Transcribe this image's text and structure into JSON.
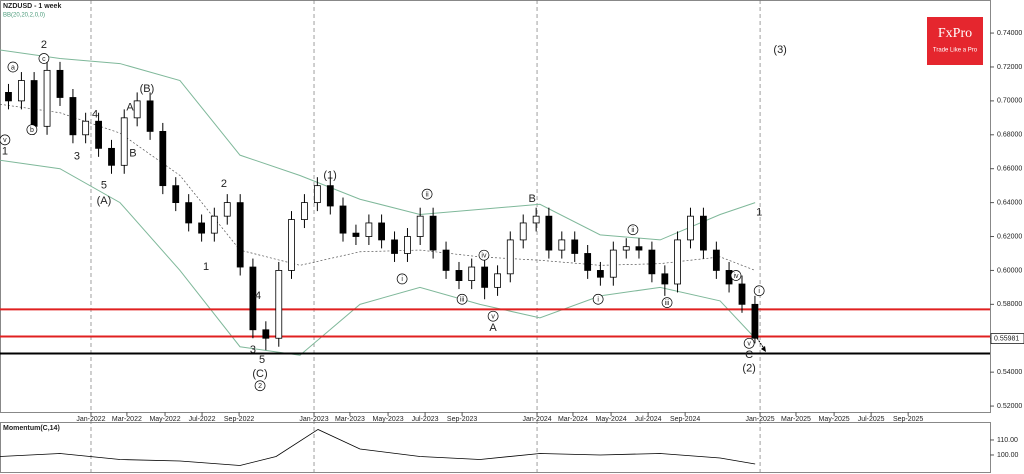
{
  "logo": {
    "title": "FxPro",
    "subtitle": "Trade Like a Pro"
  },
  "chart_data": [
    {
      "type": "candlestick",
      "title": "NZDUSD - 1 week",
      "subtitle": "BB(20,20,2,0,0)",
      "x": [
        2021.63,
        2021.688,
        2021.745,
        2021.803,
        2021.861,
        2021.919,
        2021.976,
        2022.034,
        2022.092,
        2022.149,
        2022.207,
        2022.265,
        2022.322,
        2022.38,
        2022.438,
        2022.496,
        2022.553,
        2022.611,
        2022.669,
        2022.726,
        2022.784,
        2022.842,
        2022.899,
        2022.957,
        2023.015,
        2023.073,
        2023.13,
        2023.188,
        2023.246,
        2023.303,
        2023.361,
        2023.419,
        2023.476,
        2023.534,
        2023.592,
        2023.65,
        2023.707,
        2023.765,
        2023.823,
        2023.88,
        2023.938,
        2023.996,
        2024.053,
        2024.111,
        2024.169,
        2024.227,
        2024.284,
        2024.342,
        2024.4,
        2024.457,
        2024.515,
        2024.573,
        2024.63,
        2024.688,
        2024.746,
        2024.804,
        2024.861,
        2024.919,
        2024.977
      ],
      "open": [
        0.705,
        0.7,
        0.712,
        0.685,
        0.718,
        0.702,
        0.68,
        0.688,
        0.672,
        0.662,
        0.69,
        0.7,
        0.682,
        0.65,
        0.64,
        0.628,
        0.622,
        0.632,
        0.64,
        0.602,
        0.565,
        0.56,
        0.6,
        0.63,
        0.64,
        0.65,
        0.638,
        0.622,
        0.62,
        0.628,
        0.618,
        0.61,
        0.62,
        0.632,
        0.612,
        0.6,
        0.594,
        0.602,
        0.59,
        0.598,
        0.618,
        0.628,
        0.632,
        0.612,
        0.618,
        0.61,
        0.6,
        0.596,
        0.612,
        0.614,
        0.612,
        0.598,
        0.592,
        0.618,
        0.632,
        0.612,
        0.6,
        0.592,
        0.58
      ],
      "high": [
        0.71,
        0.717,
        0.717,
        0.723,
        0.723,
        0.707,
        0.693,
        0.693,
        0.677,
        0.695,
        0.705,
        0.705,
        0.687,
        0.655,
        0.645,
        0.633,
        0.637,
        0.645,
        0.645,
        0.607,
        0.57,
        0.605,
        0.635,
        0.645,
        0.655,
        0.655,
        0.643,
        0.627,
        0.633,
        0.633,
        0.623,
        0.625,
        0.637,
        0.637,
        0.617,
        0.605,
        0.607,
        0.607,
        0.603,
        0.623,
        0.633,
        0.637,
        0.637,
        0.623,
        0.623,
        0.615,
        0.605,
        0.617,
        0.619,
        0.619,
        0.617,
        0.603,
        0.623,
        0.637,
        0.637,
        0.617,
        0.605,
        0.597,
        0.585
      ],
      "low": [
        0.695,
        0.695,
        0.68,
        0.68,
        0.697,
        0.675,
        0.675,
        0.667,
        0.657,
        0.657,
        0.685,
        0.677,
        0.645,
        0.635,
        0.623,
        0.617,
        0.617,
        0.627,
        0.597,
        0.56,
        0.553,
        0.555,
        0.595,
        0.625,
        0.635,
        0.633,
        0.617,
        0.615,
        0.615,
        0.613,
        0.605,
        0.605,
        0.615,
        0.607,
        0.595,
        0.589,
        0.589,
        0.583,
        0.585,
        0.593,
        0.613,
        0.623,
        0.607,
        0.607,
        0.605,
        0.595,
        0.591,
        0.591,
        0.607,
        0.607,
        0.593,
        0.585,
        0.587,
        0.613,
        0.607,
        0.595,
        0.587,
        0.575,
        0.557
      ],
      "close": [
        0.7,
        0.712,
        0.685,
        0.718,
        0.702,
        0.68,
        0.688,
        0.672,
        0.662,
        0.69,
        0.7,
        0.682,
        0.65,
        0.64,
        0.628,
        0.622,
        0.632,
        0.64,
        0.602,
        0.565,
        0.56,
        0.6,
        0.63,
        0.64,
        0.65,
        0.638,
        0.622,
        0.62,
        0.628,
        0.618,
        0.61,
        0.62,
        0.632,
        0.612,
        0.6,
        0.594,
        0.602,
        0.59,
        0.598,
        0.618,
        0.628,
        0.632,
        0.612,
        0.618,
        0.61,
        0.6,
        0.596,
        0.612,
        0.614,
        0.612,
        0.598,
        0.592,
        0.618,
        0.632,
        0.612,
        0.6,
        0.592,
        0.58,
        0.56
      ],
      "up_color": "#ffffff",
      "down_color": "#000000",
      "xlim": [
        2021.592,
        2026.031
      ],
      "ylim": [
        0.5165,
        0.7595
      ],
      "xticks": [
        {
          "value": 2022.0,
          "label": "Jan-2022"
        },
        {
          "value": 2022.161,
          "label": "Mar-2022"
        },
        {
          "value": 2022.332,
          "label": "May-2022"
        },
        {
          "value": 2022.498,
          "label": "Jul-2022"
        },
        {
          "value": 2022.664,
          "label": "Sep-2022"
        },
        {
          "value": 2023.0,
          "label": "Jan-2023"
        },
        {
          "value": 2023.161,
          "label": "Mar-2023"
        },
        {
          "value": 2023.332,
          "label": "May-2023"
        },
        {
          "value": 2023.498,
          "label": "Jul-2023"
        },
        {
          "value": 2023.664,
          "label": "Sep-2023"
        },
        {
          "value": 2024.0,
          "label": "Jan-2024"
        },
        {
          "value": 2024.161,
          "label": "Mar-2024"
        },
        {
          "value": 2024.332,
          "label": "May-2024"
        },
        {
          "value": 2024.498,
          "label": "Jul-2024"
        },
        {
          "value": 2024.664,
          "label": "Sep-2024"
        },
        {
          "value": 2025.0,
          "label": "Jan-2025"
        },
        {
          "value": 2025.161,
          "label": "Mar-2025"
        },
        {
          "value": 2025.332,
          "label": "May-2025"
        },
        {
          "value": 2025.498,
          "label": "Jul-2025"
        },
        {
          "value": 2025.664,
          "label": "Sep-2025"
        }
      ],
      "xgrid": [
        2022,
        2023,
        2024,
        2025
      ],
      "yticks": [
        {
          "value": 0.74,
          "label": "0.74000"
        },
        {
          "value": 0.72,
          "label": "0.72000"
        },
        {
          "value": 0.7,
          "label": "0.70000"
        },
        {
          "value": 0.68,
          "label": "0.68000"
        },
        {
          "value": 0.66,
          "label": "0.66000"
        },
        {
          "value": 0.64,
          "label": "0.64000"
        },
        {
          "value": 0.62,
          "label": "0.62000"
        },
        {
          "value": 0.6,
          "label": "0.60000"
        },
        {
          "value": 0.58,
          "label": "0.58000"
        },
        {
          "value": 0.56,
          "label": "0.56000"
        },
        {
          "value": 0.54,
          "label": "0.54000"
        },
        {
          "value": 0.52,
          "label": "0.52000"
        }
      ],
      "bands": {
        "color": "#7fb89a",
        "x": [
          2021.592,
          2021.861,
          2022.13,
          2022.399,
          2022.668,
          2022.937,
          2023.206,
          2023.475,
          2023.744,
          2024.013,
          2024.283,
          2024.552,
          2024.821,
          2024.978
        ],
        "upper": [
          0.73,
          0.725,
          0.722,
          0.712,
          0.668,
          0.656,
          0.642,
          0.633,
          0.636,
          0.639,
          0.621,
          0.618,
          0.633,
          0.64
        ],
        "middle": [
          0.698,
          0.693,
          0.681,
          0.656,
          0.612,
          0.603,
          0.611,
          0.612,
          0.608,
          0.606,
          0.603,
          0.604,
          0.608,
          0.6
        ],
        "lower": [
          0.665,
          0.66,
          0.64,
          0.6,
          0.555,
          0.55,
          0.58,
          0.59,
          0.58,
          0.572,
          0.585,
          0.59,
          0.582,
          0.56
        ]
      },
      "hlines": [
        {
          "value": 0.577,
          "color": "#e02020"
        },
        {
          "value": 0.561,
          "color": "#e02020"
        },
        {
          "value": 0.551,
          "color": "#000000"
        }
      ],
      "last_price": {
        "value": 0.55981,
        "label": "0.55981"
      },
      "annotations": [
        {
          "text": "a",
          "x": 2021.65,
          "y": 0.72,
          "circled": true
        },
        {
          "text": "b",
          "x": 2021.735,
          "y": 0.683,
          "circled": true
        },
        {
          "text": "2",
          "x": 2021.789,
          "y": 0.733,
          "circled": false
        },
        {
          "text": "c",
          "x": 2021.789,
          "y": 0.725,
          "circled": true
        },
        {
          "text": "v",
          "x": 2021.614,
          "y": 0.677,
          "circled": true
        },
        {
          "text": "1",
          "x": 2021.614,
          "y": 0.67,
          "circled": false
        },
        {
          "text": "3",
          "x": 2021.937,
          "y": 0.667,
          "circled": false
        },
        {
          "text": "4",
          "x": 2022.018,
          "y": 0.692,
          "circled": false
        },
        {
          "text": "5",
          "x": 2022.058,
          "y": 0.65,
          "circled": false
        },
        {
          "text": "(A)",
          "x": 2022.058,
          "y": 0.641,
          "circled": false
        },
        {
          "text": "A",
          "x": 2022.175,
          "y": 0.696,
          "circled": false
        },
        {
          "text": "(B)",
          "x": 2022.251,
          "y": 0.707,
          "circled": false
        },
        {
          "text": "B",
          "x": 2022.188,
          "y": 0.669,
          "circled": false
        },
        {
          "text": "2",
          "x": 2022.596,
          "y": 0.651,
          "circled": false
        },
        {
          "text": "1",
          "x": 2022.516,
          "y": 0.602,
          "circled": false
        },
        {
          "text": "4",
          "x": 2022.749,
          "y": 0.585,
          "circled": false
        },
        {
          "text": "3",
          "x": 2022.726,
          "y": 0.553,
          "circled": false
        },
        {
          "text": "5",
          "x": 2022.767,
          "y": 0.547,
          "circled": false
        },
        {
          "text": "(C)",
          "x": 2022.758,
          "y": 0.539,
          "circled": false
        },
        {
          "text": "2",
          "x": 2022.758,
          "y": 0.532,
          "circled": true
        },
        {
          "text": "(1)",
          "x": 2023.072,
          "y": 0.656,
          "circled": false
        },
        {
          "text": "ii",
          "x": 2023.507,
          "y": 0.645,
          "circled": true
        },
        {
          "text": "i",
          "x": 2023.395,
          "y": 0.595,
          "circled": true
        },
        {
          "text": "iii",
          "x": 2023.664,
          "y": 0.583,
          "circled": true
        },
        {
          "text": "iv",
          "x": 2023.762,
          "y": 0.609,
          "circled": true
        },
        {
          "text": "v",
          "x": 2023.803,
          "y": 0.573,
          "circled": true
        },
        {
          "text": "A",
          "x": 2023.803,
          "y": 0.566,
          "circled": false
        },
        {
          "text": "B",
          "x": 2023.978,
          "y": 0.642,
          "circled": false
        },
        {
          "text": "ii",
          "x": 2024.43,
          "y": 0.624,
          "circled": true
        },
        {
          "text": "i",
          "x": 2024.274,
          "y": 0.583,
          "circled": true
        },
        {
          "text": "iii",
          "x": 2024.583,
          "y": 0.581,
          "circled": true
        },
        {
          "text": "iv",
          "x": 2024.892,
          "y": 0.597,
          "circled": true
        },
        {
          "text": "i",
          "x": 2024.996,
          "y": 0.588,
          "circled": true
        },
        {
          "text": "v",
          "x": 2024.951,
          "y": 0.557,
          "circled": true
        },
        {
          "text": "C",
          "x": 2024.951,
          "y": 0.55,
          "circled": false
        },
        {
          "text": "(2)",
          "x": 2024.951,
          "y": 0.542,
          "circled": false
        },
        {
          "text": "(3)",
          "x": 2025.09,
          "y": 0.73,
          "circled": false
        },
        {
          "text": "1",
          "x": 2024.996,
          "y": 0.634,
          "circled": false
        }
      ]
    },
    {
      "type": "line",
      "title": "Momentum(C,14)",
      "color": "#000000",
      "x": [
        2021.592,
        2021.861,
        2022.13,
        2022.399,
        2022.668,
        2022.83,
        2023.018,
        2023.206,
        2023.475,
        2023.744,
        2024.013,
        2024.283,
        2024.552,
        2024.821,
        2024.978
      ],
      "values": [
        99,
        101,
        97,
        96,
        93,
        99,
        117,
        104,
        99,
        97,
        101,
        100,
        101,
        98,
        94
      ],
      "xlim": [
        2021.592,
        2026.031
      ],
      "ylim": [
        90,
        119.3
      ],
      "yticks": [
        {
          "value": 110,
          "label": "110.00"
        },
        {
          "value": 100,
          "label": "100.00"
        }
      ]
    }
  ]
}
